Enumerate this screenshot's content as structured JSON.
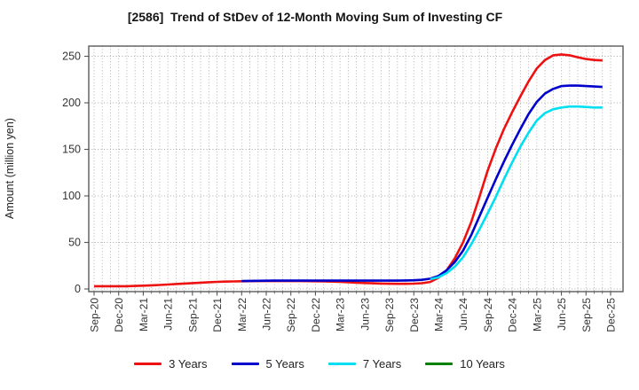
{
  "header": {
    "title": "[2586]  Trend of StDev of 12-Month Moving Sum of Investing CF"
  },
  "y_axis": {
    "label": "Amount (million yen)",
    "ticks": [
      0,
      50,
      100,
      150,
      200,
      250
    ]
  },
  "x_axis": {
    "tick_labels": [
      "Sep-20",
      "Dec-20",
      "Mar-21",
      "Jun-21",
      "Sep-21",
      "Dec-21",
      "Mar-22",
      "Jun-22",
      "Sep-22",
      "Dec-22",
      "Mar-23",
      "Jun-23",
      "Sep-23",
      "Dec-23",
      "Mar-24",
      "Jun-24",
      "Sep-24",
      "Dec-24",
      "Mar-25",
      "Jun-25",
      "Sep-25",
      "Dec-25"
    ]
  },
  "chart_data": {
    "type": "line",
    "title": "[2586]  Trend of StDev of 12-Month Moving Sum of Investing CF",
    "xlabel": "",
    "ylabel": "Amount (million yen)",
    "ylim": [
      -2.5,
      262
    ],
    "grid": true,
    "grid_style": "dotted, monthly vertical + every 50 horizontal",
    "legend_position": "bottom",
    "x_unit": "month",
    "x_start": "Sep-20",
    "x_axis_end": "Dec-25",
    "x_quarterly_ticks": [
      "Sep-20",
      "Dec-20",
      "Mar-21",
      "Jun-21",
      "Sep-21",
      "Dec-21",
      "Mar-22",
      "Jun-22",
      "Sep-22",
      "Dec-22",
      "Mar-23",
      "Jun-23",
      "Sep-23",
      "Dec-23",
      "Mar-24",
      "Jun-24",
      "Sep-24",
      "Dec-24",
      "Mar-25",
      "Jun-25",
      "Sep-25",
      "Dec-25"
    ],
    "series": [
      {
        "name": "3 Years",
        "color": "#ee1111",
        "values": [
          3,
          3,
          3,
          3,
          3,
          3.2,
          3.5,
          3.9,
          4.3,
          4.8,
          5.3,
          5.8,
          6.3,
          6.8,
          7.2,
          7.6,
          7.9,
          8.1,
          8.3,
          8.4,
          8.5,
          8.5,
          8.5,
          8.5,
          8.5,
          8.5,
          8.4,
          8.3,
          8.1,
          7.9,
          7.6,
          7.2,
          6.8,
          6.4,
          6.1,
          5.8,
          5.6,
          5.5,
          5.5,
          5.7,
          6.2,
          7.5,
          12,
          20,
          33,
          50,
          72,
          99,
          127,
          151,
          172,
          190,
          207,
          223,
          237,
          246,
          251,
          252,
          251,
          249,
          247,
          246,
          245.5
        ]
      },
      {
        "name": "5 Years",
        "color": "#0000cc",
        "values": [
          null,
          null,
          null,
          null,
          null,
          null,
          null,
          null,
          null,
          null,
          null,
          null,
          null,
          null,
          null,
          null,
          null,
          null,
          8.5,
          8.7,
          8.8,
          8.9,
          9,
          9,
          9,
          9,
          9,
          9,
          9,
          9,
          9,
          9,
          9,
          9,
          9,
          9,
          9,
          9,
          9.1,
          9.3,
          9.8,
          11,
          14,
          20,
          29,
          41,
          58,
          78,
          98,
          118,
          137,
          155,
          172,
          188,
          201,
          210,
          215,
          218,
          218.5,
          218.5,
          218,
          217.5,
          217
        ]
      },
      {
        "name": "7 Years",
        "color": "#00dff2",
        "values": [
          null,
          null,
          null,
          null,
          null,
          null,
          null,
          null,
          null,
          null,
          null,
          null,
          null,
          null,
          null,
          null,
          null,
          null,
          null,
          null,
          null,
          null,
          null,
          null,
          null,
          null,
          null,
          null,
          null,
          null,
          null,
          null,
          null,
          null,
          null,
          null,
          null,
          null,
          null,
          null,
          null,
          10.5,
          12.5,
          17,
          24,
          34,
          48,
          64,
          81,
          99,
          118,
          136,
          153,
          168,
          181,
          189,
          193,
          195,
          196,
          196,
          195.5,
          195,
          195
        ]
      },
      {
        "name": "10 Years",
        "color": "#008000",
        "values": []
      }
    ]
  }
}
